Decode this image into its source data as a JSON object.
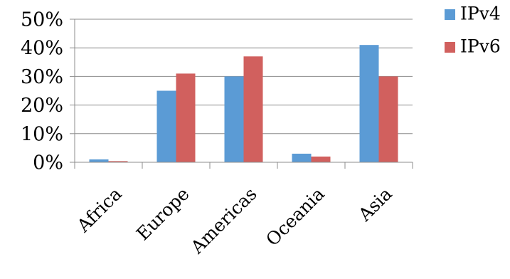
{
  "chart_data": {
    "type": "bar",
    "title": "",
    "xlabel": "",
    "ylabel": "",
    "categories": [
      "Africa",
      "Europe",
      "Americas",
      "Oceania",
      "Asia"
    ],
    "series": [
      {
        "name": "IPv4",
        "values": [
          1,
          25,
          30,
          3,
          41
        ],
        "color": "#5b9bd5"
      },
      {
        "name": "IPv6",
        "values": [
          0.4,
          31,
          37,
          2,
          30
        ],
        "color": "#d1605e"
      }
    ],
    "ylim": [
      0,
      50
    ],
    "yticks": [
      0,
      10,
      20,
      30,
      40,
      50
    ],
    "ytick_labels": [
      "0%",
      "10%",
      "20%",
      "30%",
      "40%",
      "50%"
    ],
    "grid": true,
    "legend": "right"
  }
}
